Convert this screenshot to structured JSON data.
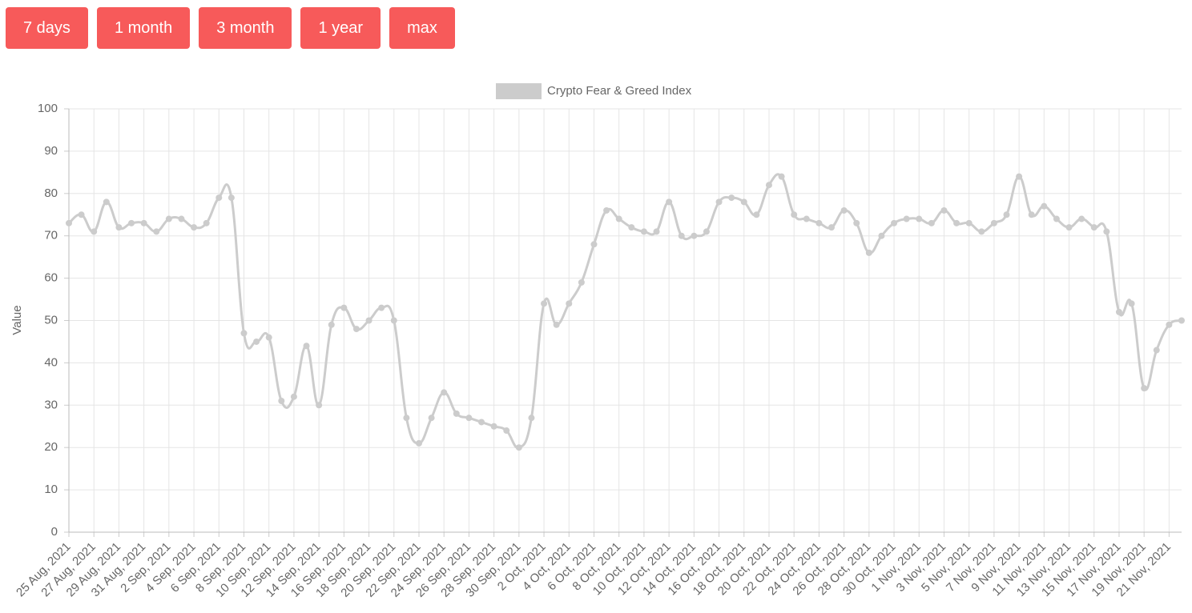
{
  "buttons": [
    "7 days",
    "1 month",
    "3 month",
    "1 year",
    "max"
  ],
  "chart_data": {
    "type": "line",
    "y_label": "Value",
    "categories": [
      "25 Aug, 2021",
      null,
      "27 Aug, 2021",
      null,
      "29 Aug, 2021",
      null,
      "31 Aug, 2021",
      null,
      "2 Sep, 2021",
      null,
      "4 Sep, 2021",
      null,
      "6 Sep, 2021",
      null,
      "8 Sep, 2021",
      null,
      "10 Sep, 2021",
      null,
      "12 Sep, 2021",
      null,
      "14 Sep, 2021",
      null,
      "16 Sep, 2021",
      null,
      "18 Sep, 2021",
      null,
      "20 Sep, 2021",
      null,
      "22 Sep, 2021",
      null,
      "24 Sep, 2021",
      null,
      "26 Sep, 2021",
      null,
      "28 Sep, 2021",
      null,
      "30 Sep, 2021",
      null,
      "2 Oct, 2021",
      null,
      "4 Oct, 2021",
      null,
      "6 Oct, 2021",
      null,
      "8 Oct, 2021",
      null,
      "10 Oct, 2021",
      null,
      "12 Oct, 2021",
      null,
      "14 Oct, 2021",
      null,
      "16 Oct, 2021",
      null,
      "18 Oct, 2021",
      null,
      "20 Oct, 2021",
      null,
      "22 Oct, 2021",
      null,
      "24 Oct, 2021",
      null,
      "26 Oct, 2021",
      null,
      "28 Oct, 2021",
      null,
      "30 Oct, 2021",
      null,
      "1 Nov, 2021",
      null,
      "3 Nov, 2021",
      null,
      "5 Nov, 2021",
      null,
      "7 Nov, 2021",
      null,
      "9 Nov, 2021",
      null,
      "11 Nov, 2021",
      null,
      "13 Nov, 2021",
      null,
      "15 Nov, 2021",
      null,
      "17 Nov, 2021",
      null,
      "19 Nov, 2021",
      null,
      "21 Nov, 2021",
      null
    ],
    "series": [
      {
        "name": "Crypto Fear & Greed Index",
        "color": "#cccccc",
        "values": [
          73,
          75,
          71,
          78,
          72,
          73,
          73,
          71,
          74,
          74,
          72,
          73,
          79,
          79,
          47,
          45,
          46,
          31,
          32,
          44,
          30,
          49,
          53,
          48,
          50,
          53,
          50,
          27,
          21,
          27,
          33,
          28,
          27,
          26,
          25,
          24,
          20,
          27,
          54,
          49,
          54,
          59,
          68,
          76,
          74,
          72,
          71,
          71,
          78,
          70,
          70,
          71,
          78,
          79,
          78,
          75,
          82,
          84,
          75,
          74,
          73,
          72,
          76,
          73,
          66,
          70,
          73,
          74,
          74,
          73,
          76,
          73,
          73,
          71,
          73,
          75,
          84,
          75,
          77,
          74,
          72,
          74,
          72,
          71,
          52,
          54,
          34,
          43,
          49,
          50
        ]
      }
    ],
    "ylim": [
      0,
      100
    ],
    "yticks": [
      0,
      10,
      20,
      30,
      40,
      50,
      60,
      70,
      80,
      90,
      100
    ],
    "grid": true
  }
}
